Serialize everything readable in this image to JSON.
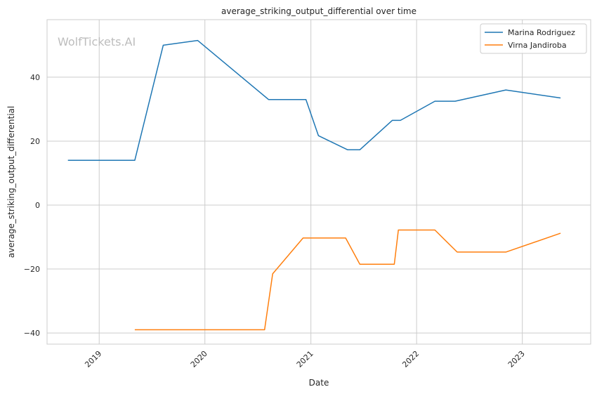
{
  "chart_data": {
    "type": "line",
    "title": "average_striking_output_differential over time",
    "xlabel": "Date",
    "ylabel": "average_striking_output_differential",
    "watermark": "WolfTickets.AI",
    "xlim": [
      "2018-07-05",
      "2023-08-25"
    ],
    "ylim": [
      -43.5,
      58
    ],
    "xticks": [
      {
        "date": "2019-01-01",
        "label": "2019"
      },
      {
        "date": "2020-01-01",
        "label": "2020"
      },
      {
        "date": "2021-01-01",
        "label": "2021"
      },
      {
        "date": "2022-01-01",
        "label": "2022"
      },
      {
        "date": "2023-01-01",
        "label": "2023"
      }
    ],
    "yticks": [
      -40,
      -20,
      0,
      20,
      40
    ],
    "grid": true,
    "legend_position": "top-right",
    "series": [
      {
        "name": "Marina Rodriguez",
        "color": "#1f77b4",
        "points": [
          {
            "x": "2018-09-15",
            "y": 14
          },
          {
            "x": "2019-05-04",
            "y": 14
          },
          {
            "x": "2019-08-10",
            "y": 50
          },
          {
            "x": "2019-12-07",
            "y": 51.5
          },
          {
            "x": "2020-08-08",
            "y": 33
          },
          {
            "x": "2020-12-15",
            "y": 33
          },
          {
            "x": "2021-01-27",
            "y": 21.7
          },
          {
            "x": "2021-05-08",
            "y": 17.3
          },
          {
            "x": "2021-06-19",
            "y": 17.3
          },
          {
            "x": "2021-10-09",
            "y": 26.5
          },
          {
            "x": "2021-11-06",
            "y": 26.5
          },
          {
            "x": "2022-03-05",
            "y": 32.5
          },
          {
            "x": "2022-05-14",
            "y": 32.5
          },
          {
            "x": "2022-11-05",
            "y": 36
          },
          {
            "x": "2023-05-13",
            "y": 33.5
          }
        ]
      },
      {
        "name": "Virna Jandiroba",
        "color": "#ff7f0e",
        "points": [
          {
            "x": "2019-05-04",
            "y": -39
          },
          {
            "x": "2020-07-25",
            "y": -39
          },
          {
            "x": "2020-08-22",
            "y": -21.5
          },
          {
            "x": "2020-12-05",
            "y": -10.3
          },
          {
            "x": "2021-05-01",
            "y": -10.3
          },
          {
            "x": "2021-06-19",
            "y": -18.5
          },
          {
            "x": "2021-10-16",
            "y": -18.5
          },
          {
            "x": "2021-10-30",
            "y": -7.8
          },
          {
            "x": "2022-03-05",
            "y": -7.8
          },
          {
            "x": "2022-05-21",
            "y": -14.7
          },
          {
            "x": "2022-11-05",
            "y": -14.7
          },
          {
            "x": "2023-05-13",
            "y": -8.8
          }
        ]
      }
    ]
  }
}
